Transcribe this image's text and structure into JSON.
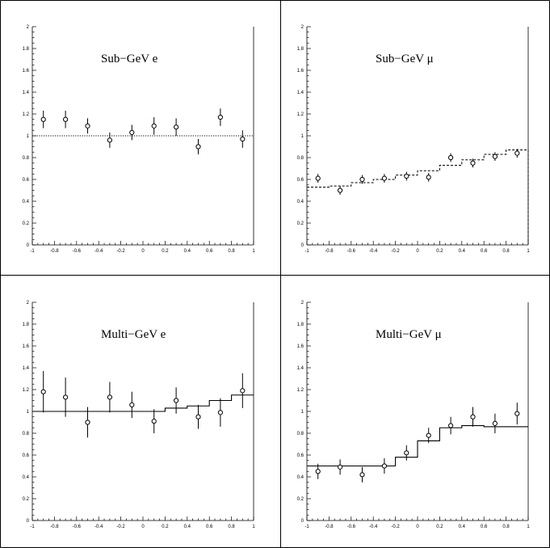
{
  "chart_data": [
    {
      "type": "scatter",
      "title": "Sub−GeV  e",
      "xlim": [
        -1,
        1
      ],
      "ylim": [
        0,
        2
      ],
      "xticks": [
        "-1",
        "-0.8",
        "-0.6",
        "-0.4",
        "-0.2",
        "0",
        "0.2",
        "0.4",
        "0.6",
        "0.8",
        "1"
      ],
      "yticks": [
        "0",
        "0.2",
        "0.4",
        "0.6",
        "0.8",
        "1",
        "1.2",
        "1.4",
        "1.6",
        "1.8",
        "2"
      ],
      "x": [
        -0.9,
        -0.7,
        -0.5,
        -0.3,
        -0.1,
        0.1,
        0.3,
        0.5,
        0.7,
        0.9
      ],
      "values": [
        1.15,
        1.15,
        1.09,
        0.96,
        1.03,
        1.09,
        1.08,
        0.9,
        1.17,
        0.97
      ],
      "errors": [
        0.08,
        0.08,
        0.07,
        0.07,
        0.07,
        0.08,
        0.08,
        0.07,
        0.08,
        0.08
      ],
      "curve": {
        "style": "dotted",
        "edges": [
          -1,
          1
        ],
        "values": [
          1.0
        ]
      }
    },
    {
      "type": "scatter",
      "title": "Sub−GeV  μ",
      "xlim": [
        -1,
        1
      ],
      "ylim": [
        0,
        2
      ],
      "xticks": [
        "-1",
        "-0.8",
        "-0.6",
        "-0.4",
        "-0.2",
        "0",
        "0.2",
        "0.4",
        "0.6",
        "0.8",
        "1"
      ],
      "yticks": [
        "0",
        "0.2",
        "0.4",
        "0.6",
        "0.8",
        "1",
        "1.2",
        "1.4",
        "1.6",
        "1.8",
        "2"
      ],
      "x": [
        -0.9,
        -0.7,
        -0.5,
        -0.3,
        -0.1,
        0.1,
        0.3,
        0.5,
        0.7,
        0.9
      ],
      "values": [
        0.61,
        0.5,
        0.6,
        0.61,
        0.63,
        0.62,
        0.8,
        0.75,
        0.81,
        0.84
      ],
      "errors": [
        0.04,
        0.04,
        0.04,
        0.04,
        0.04,
        0.04,
        0.04,
        0.04,
        0.04,
        0.04
      ],
      "curve": {
        "style": "dashed",
        "edges": [
          -1,
          -0.8,
          -0.6,
          -0.4,
          -0.2,
          0,
          0.2,
          0.4,
          0.6,
          0.8,
          1
        ],
        "values": [
          0.53,
          0.54,
          0.57,
          0.6,
          0.64,
          0.68,
          0.73,
          0.78,
          0.83,
          0.87
        ]
      }
    },
    {
      "type": "scatter",
      "title": "Multi−GeV   e",
      "xlim": [
        -1,
        1
      ],
      "ylim": [
        0,
        2
      ],
      "xticks": [
        "-1",
        "-0.8",
        "-0.6",
        "-0.4",
        "-0.2",
        "0",
        "0.2",
        "0.4",
        "0.6",
        "0.8",
        "1"
      ],
      "yticks": [
        "0",
        "0.2",
        "0.4",
        "0.6",
        "0.8",
        "1",
        "1.2",
        "1.4",
        "1.6",
        "1.8",
        "2"
      ],
      "x": [
        -0.9,
        -0.7,
        -0.5,
        -0.3,
        -0.1,
        0.1,
        0.3,
        0.5,
        0.7,
        0.9
      ],
      "values": [
        1.18,
        1.13,
        0.9,
        1.13,
        1.06,
        0.91,
        1.1,
        0.95,
        0.99,
        1.19
      ],
      "errors": [
        0.19,
        0.18,
        0.14,
        0.14,
        0.12,
        0.11,
        0.12,
        0.11,
        0.13,
        0.16
      ],
      "curve": {
        "style": "solid",
        "edges": [
          -1,
          -0.8,
          -0.6,
          -0.4,
          -0.2,
          0,
          0.2,
          0.4,
          0.6,
          0.8,
          1
        ],
        "values": [
          1.0,
          1.0,
          1.0,
          1.0,
          1.0,
          1.0,
          1.03,
          1.05,
          1.1,
          1.15
        ]
      }
    },
    {
      "type": "scatter",
      "title": "Multi−GeV  μ",
      "xlim": [
        -1,
        1
      ],
      "ylim": [
        0,
        2
      ],
      "xticks": [
        "-1",
        "-0.8",
        "-0.6",
        "-0.4",
        "-0.2",
        "0",
        "0.2",
        "0.4",
        "0.6",
        "0.8",
        "1"
      ],
      "yticks": [
        "0",
        "0.2",
        "0.4",
        "0.6",
        "0.8",
        "1",
        "1.2",
        "1.4",
        "1.6",
        "1.8",
        "2"
      ],
      "x": [
        -0.9,
        -0.7,
        -0.5,
        -0.3,
        -0.1,
        0.1,
        0.3,
        0.5,
        0.7,
        0.9
      ],
      "values": [
        0.45,
        0.49,
        0.42,
        0.5,
        0.62,
        0.78,
        0.87,
        0.95,
        0.89,
        0.98
      ],
      "errors": [
        0.07,
        0.07,
        0.07,
        0.07,
        0.07,
        0.07,
        0.08,
        0.09,
        0.09,
        0.1
      ],
      "curve": {
        "style": "solid",
        "edges": [
          -1,
          -0.8,
          -0.6,
          -0.4,
          -0.2,
          0,
          0.2,
          0.4,
          0.6,
          0.8,
          1
        ],
        "values": [
          0.5,
          0.5,
          0.5,
          0.5,
          0.58,
          0.73,
          0.85,
          0.87,
          0.86,
          0.86
        ]
      }
    }
  ]
}
